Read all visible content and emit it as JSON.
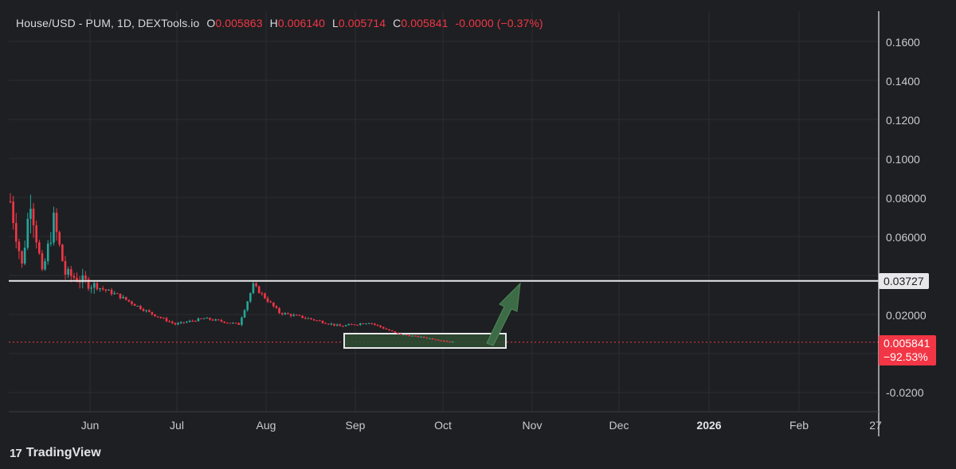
{
  "legend": {
    "symbol": "House/USD - PUM, 1D, DEXTools.io",
    "open_label": "O",
    "open_value": "0.005863",
    "high_label": "H",
    "high_value": "0.006140",
    "low_label": "L",
    "low_value": "0.005714",
    "close_label": "C",
    "close_value": "0.005841",
    "change": "-0.0000 (−0.37%)"
  },
  "y_axis": {
    "ticks": [
      "0.1600",
      "0.1400",
      "0.1200",
      "0.1000",
      "0.08000",
      "0.06000",
      "0.02000",
      "-0.0200"
    ]
  },
  "x_axis": {
    "ticks": [
      "Jun",
      "Jul",
      "Aug",
      "Sep",
      "Oct",
      "Nov",
      "Dec",
      "2026",
      "Feb",
      "27"
    ]
  },
  "price_tags": {
    "level": "0.03727",
    "current_price": "0.005841",
    "current_change": "−92.53%"
  },
  "brand": {
    "logo": "17",
    "name": "TradingView"
  },
  "colors": {
    "background": "#1e1f22",
    "up": "#26a69a",
    "down": "#f23645",
    "level_line": "#e8e8ea",
    "box_fill": "#2f4d32",
    "arrow": "#3c6b46"
  },
  "chart_data": {
    "type": "candlestick",
    "series_approx_close": [
      {
        "date": "May 14",
        "value": 0.078
      },
      {
        "date": "May 18",
        "value": 0.045
      },
      {
        "date": "May 21",
        "value": 0.08
      },
      {
        "date": "May 25",
        "value": 0.04
      },
      {
        "date": "May 29",
        "value": 0.068
      },
      {
        "date": "Jun 02",
        "value": 0.041
      },
      {
        "date": "Jun 10",
        "value": 0.036
      },
      {
        "date": "Jun 20",
        "value": 0.03
      },
      {
        "date": "Jul 01",
        "value": 0.021
      },
      {
        "date": "Jul 10",
        "value": 0.015
      },
      {
        "date": "Jul 20",
        "value": 0.018
      },
      {
        "date": "Aug 01",
        "value": 0.015
      },
      {
        "date": "Aug 06",
        "value": 0.035
      },
      {
        "date": "Aug 15",
        "value": 0.021
      },
      {
        "date": "Aug 25",
        "value": 0.018
      },
      {
        "date": "Sep 05",
        "value": 0.014
      },
      {
        "date": "Sep 15",
        "value": 0.016
      },
      {
        "date": "Sep 25",
        "value": 0.01
      },
      {
        "date": "Oct 05",
        "value": 0.008
      },
      {
        "date": "Oct 14",
        "value": 0.005841
      }
    ],
    "horizontal_level": 0.03727,
    "current_price": 0.005841,
    "ylim": [
      -0.03,
      0.175
    ]
  }
}
